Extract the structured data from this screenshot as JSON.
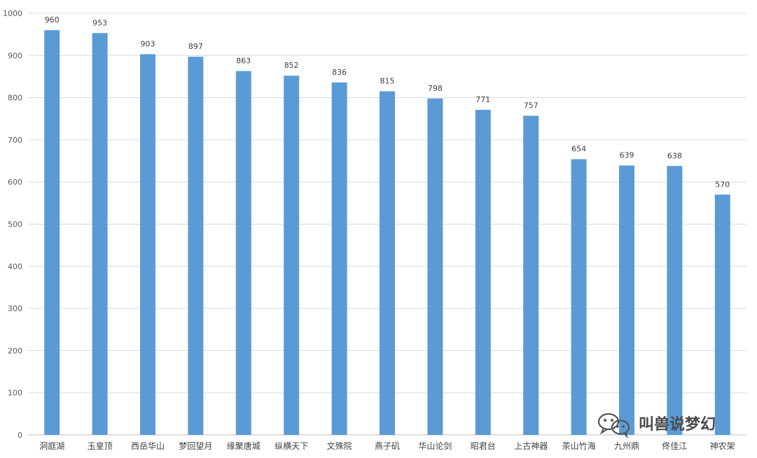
{
  "chart_data": {
    "type": "bar",
    "categories": [
      "洞庭湖",
      "玉皇顶",
      "西岳华山",
      "梦回望月",
      "缘聚唐城",
      "纵横天下",
      "文殊院",
      "燕子矶",
      "华山论剑",
      "昭君台",
      "上古神器",
      "茶山竹海",
      "九州鼎",
      "佟佳江",
      "神农架"
    ],
    "values": [
      960,
      953,
      903,
      897,
      863,
      852,
      836,
      815,
      798,
      771,
      757,
      654,
      639,
      638,
      570
    ],
    "ylim": [
      0,
      1000
    ],
    "yticks": [
      0,
      100,
      200,
      300,
      400,
      500,
      600,
      700,
      800,
      900,
      1000
    ],
    "grid": true,
    "data_labels": true,
    "bar_color": "#5b9bd5",
    "grid_color": "#d9d9d9"
  },
  "watermark": {
    "text": "叫兽说梦幻",
    "icon": "wechat-icon"
  }
}
